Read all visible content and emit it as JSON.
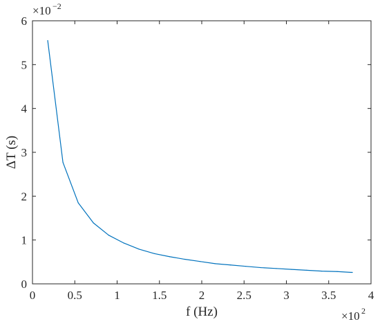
{
  "chart_data": {
    "type": "line",
    "xlabel": "f (Hz)",
    "ylabel": "ΔT (s)",
    "x_multiplier": {
      "base": "×10",
      "exponent": "2"
    },
    "y_multiplier": {
      "base": "×10",
      "exponent": "−2"
    },
    "xlim": [
      0,
      400
    ],
    "ylim": [
      0,
      0.06
    ],
    "x_ticks": [
      0,
      50,
      100,
      150,
      200,
      250,
      300,
      350,
      400
    ],
    "x_tick_labels": [
      "0",
      "0.5",
      "1",
      "1.5",
      "2",
      "2.5",
      "3",
      "3.5",
      "4"
    ],
    "y_ticks": [
      0,
      0.01,
      0.02,
      0.03,
      0.04,
      0.05,
      0.06
    ],
    "y_tick_labels": [
      "0",
      "1",
      "2",
      "3",
      "4",
      "5",
      "6"
    ],
    "grid": false,
    "series": [
      {
        "color": "#0072bd",
        "x": [
          18,
          36,
          54,
          72,
          90,
          108,
          126,
          144,
          162,
          180,
          198,
          216,
          234,
          252,
          270,
          288,
          306,
          324,
          342,
          360,
          378
        ],
        "y": [
          0.0555,
          0.0277,
          0.0185,
          0.0139,
          0.0111,
          0.0093,
          0.0079,
          0.0069,
          0.0062,
          0.0056,
          0.0051,
          0.0046,
          0.0043,
          0.004,
          0.0037,
          0.0035,
          0.0033,
          0.0031,
          0.0029,
          0.0028,
          0.0026
        ]
      }
    ]
  }
}
